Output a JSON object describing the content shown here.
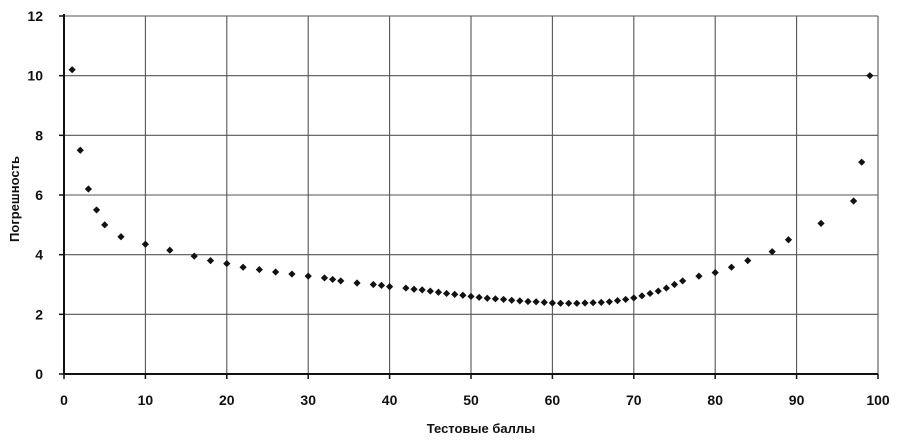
{
  "chart_data": {
    "type": "scatter",
    "title": "",
    "xlabel": "Тестовые баллы",
    "ylabel": "Погрешность",
    "xlim": [
      0,
      100
    ],
    "ylim": [
      0,
      12
    ],
    "x_ticks": [
      0,
      10,
      20,
      30,
      40,
      50,
      60,
      70,
      80,
      90,
      100
    ],
    "y_ticks": [
      0,
      2,
      4,
      6,
      8,
      10,
      12
    ],
    "grid": true,
    "legend": "none",
    "marker_color": "#111111",
    "series": [
      {
        "points": [
          [
            1,
            10.2
          ],
          [
            2,
            7.5
          ],
          [
            3,
            6.2
          ],
          [
            4,
            5.5
          ],
          [
            5,
            5.0
          ],
          [
            7,
            4.6
          ],
          [
            10,
            4.35
          ],
          [
            13,
            4.15
          ],
          [
            16,
            3.95
          ],
          [
            18,
            3.8
          ],
          [
            20,
            3.7
          ],
          [
            22,
            3.58
          ],
          [
            24,
            3.5
          ],
          [
            26,
            3.42
          ],
          [
            28,
            3.35
          ],
          [
            30,
            3.28
          ],
          [
            32,
            3.22
          ],
          [
            33,
            3.17
          ],
          [
            34,
            3.12
          ],
          [
            36,
            3.05
          ],
          [
            38,
            3.0
          ],
          [
            39,
            2.97
          ],
          [
            40,
            2.93
          ],
          [
            42,
            2.88
          ],
          [
            43,
            2.84
          ],
          [
            44,
            2.82
          ],
          [
            45,
            2.78
          ],
          [
            46,
            2.74
          ],
          [
            47,
            2.7
          ],
          [
            48,
            2.67
          ],
          [
            49,
            2.64
          ],
          [
            50,
            2.6
          ],
          [
            51,
            2.57
          ],
          [
            52,
            2.54
          ],
          [
            53,
            2.52
          ],
          [
            54,
            2.5
          ],
          [
            55,
            2.47
          ],
          [
            56,
            2.45
          ],
          [
            57,
            2.43
          ],
          [
            58,
            2.42
          ],
          [
            59,
            2.4
          ],
          [
            60,
            2.38
          ],
          [
            61,
            2.37
          ],
          [
            62,
            2.37
          ],
          [
            63,
            2.37
          ],
          [
            64,
            2.38
          ],
          [
            65,
            2.39
          ],
          [
            66,
            2.4
          ],
          [
            67,
            2.42
          ],
          [
            68,
            2.46
          ],
          [
            69,
            2.5
          ],
          [
            70,
            2.55
          ],
          [
            71,
            2.62
          ],
          [
            72,
            2.7
          ],
          [
            73,
            2.78
          ],
          [
            74,
            2.88
          ],
          [
            75,
            3.0
          ],
          [
            76,
            3.12
          ],
          [
            78,
            3.28
          ],
          [
            80,
            3.4
          ],
          [
            82,
            3.58
          ],
          [
            84,
            3.8
          ],
          [
            87,
            4.1
          ],
          [
            89,
            4.5
          ],
          [
            93,
            5.05
          ],
          [
            97,
            5.8
          ],
          [
            98,
            7.1
          ],
          [
            99,
            10.0
          ]
        ]
      }
    ]
  }
}
